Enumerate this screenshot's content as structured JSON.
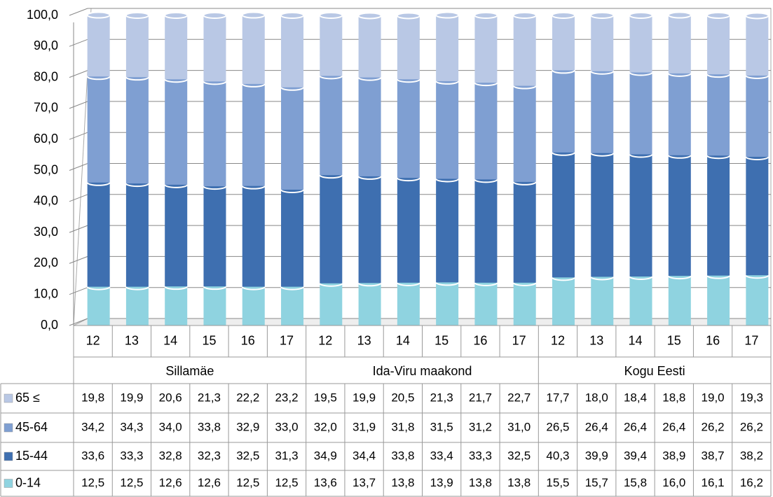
{
  "chart_data": {
    "type": "bar",
    "stacked": true,
    "categories": [
      "12",
      "13",
      "14",
      "15",
      "16",
      "17",
      "12",
      "13",
      "14",
      "15",
      "16",
      "17",
      "12",
      "13",
      "14",
      "15",
      "16",
      "17"
    ],
    "groups": [
      "Sillamäe",
      "Ida-Viru maakond",
      "Kogu Eesti"
    ],
    "ylim": [
      0,
      100
    ],
    "yticks": [
      {
        "value": 0,
        "label": "0,0"
      },
      {
        "value": 10,
        "label": "10,0"
      },
      {
        "value": 20,
        "label": "20,0"
      },
      {
        "value": 30,
        "label": "30,0"
      },
      {
        "value": 40,
        "label": "40,0"
      },
      {
        "value": 50,
        "label": "50,0"
      },
      {
        "value": 60,
        "label": "60,0"
      },
      {
        "value": 70,
        "label": "70,0"
      },
      {
        "value": 80,
        "label": "80,0"
      },
      {
        "value": 90,
        "label": "90,0"
      },
      {
        "value": 100,
        "label": "100,0"
      }
    ],
    "grid": true,
    "series": [
      {
        "name": "0-14",
        "color": "#8fd3e0",
        "values": [
          12.5,
          12.5,
          12.6,
          12.6,
          12.5,
          12.5,
          13.6,
          13.7,
          13.8,
          13.9,
          13.8,
          13.8,
          15.5,
          15.7,
          15.8,
          16.0,
          16.1,
          16.2
        ],
        "value_labels": [
          "12,5",
          "12,5",
          "12,6",
          "12,6",
          "12,5",
          "12,5",
          "13,6",
          "13,7",
          "13,8",
          "13,9",
          "13,8",
          "13,8",
          "15,5",
          "15,7",
          "15,8",
          "16,0",
          "16,1",
          "16,2"
        ]
      },
      {
        "name": "15-44",
        "color": "#3e6fb0",
        "values": [
          33.6,
          33.3,
          32.8,
          32.3,
          32.5,
          31.3,
          34.9,
          34.4,
          33.8,
          33.4,
          33.3,
          32.5,
          40.3,
          39.9,
          39.4,
          38.9,
          38.7,
          38.2
        ],
        "value_labels": [
          "33,6",
          "33,3",
          "32,8",
          "32,3",
          "32,5",
          "31,3",
          "34,9",
          "34,4",
          "33,8",
          "33,4",
          "33,3",
          "32,5",
          "40,3",
          "39,9",
          "39,4",
          "38,9",
          "38,7",
          "38,2"
        ]
      },
      {
        "name": "45-64",
        "color": "#7f9fd2",
        "values": [
          34.2,
          34.3,
          34.0,
          33.8,
          32.9,
          33.0,
          32.0,
          31.9,
          31.8,
          31.5,
          31.2,
          31.0,
          26.5,
          26.4,
          26.4,
          26.4,
          26.2,
          26.2
        ],
        "value_labels": [
          "34,2",
          "34,3",
          "34,0",
          "33,8",
          "32,9",
          "33,0",
          "32,0",
          "31,9",
          "31,8",
          "31,5",
          "31,2",
          "31,0",
          "26,5",
          "26,4",
          "26,4",
          "26,4",
          "26,2",
          "26,2"
        ]
      },
      {
        "name": "65 ≤",
        "color": "#b9c8e5",
        "values": [
          19.8,
          19.9,
          20.6,
          21.3,
          22.2,
          23.2,
          19.5,
          19.9,
          20.5,
          21.3,
          21.7,
          22.7,
          17.7,
          18.0,
          18.4,
          18.8,
          19.0,
          19.3
        ],
        "value_labels": [
          "19,8",
          "19,9",
          "20,6",
          "21,3",
          "22,2",
          "23,2",
          "19,5",
          "19,9",
          "20,5",
          "21,3",
          "21,7",
          "22,7",
          "17,7",
          "18,0",
          "18,4",
          "18,8",
          "19,0",
          "19,3"
        ]
      }
    ]
  }
}
